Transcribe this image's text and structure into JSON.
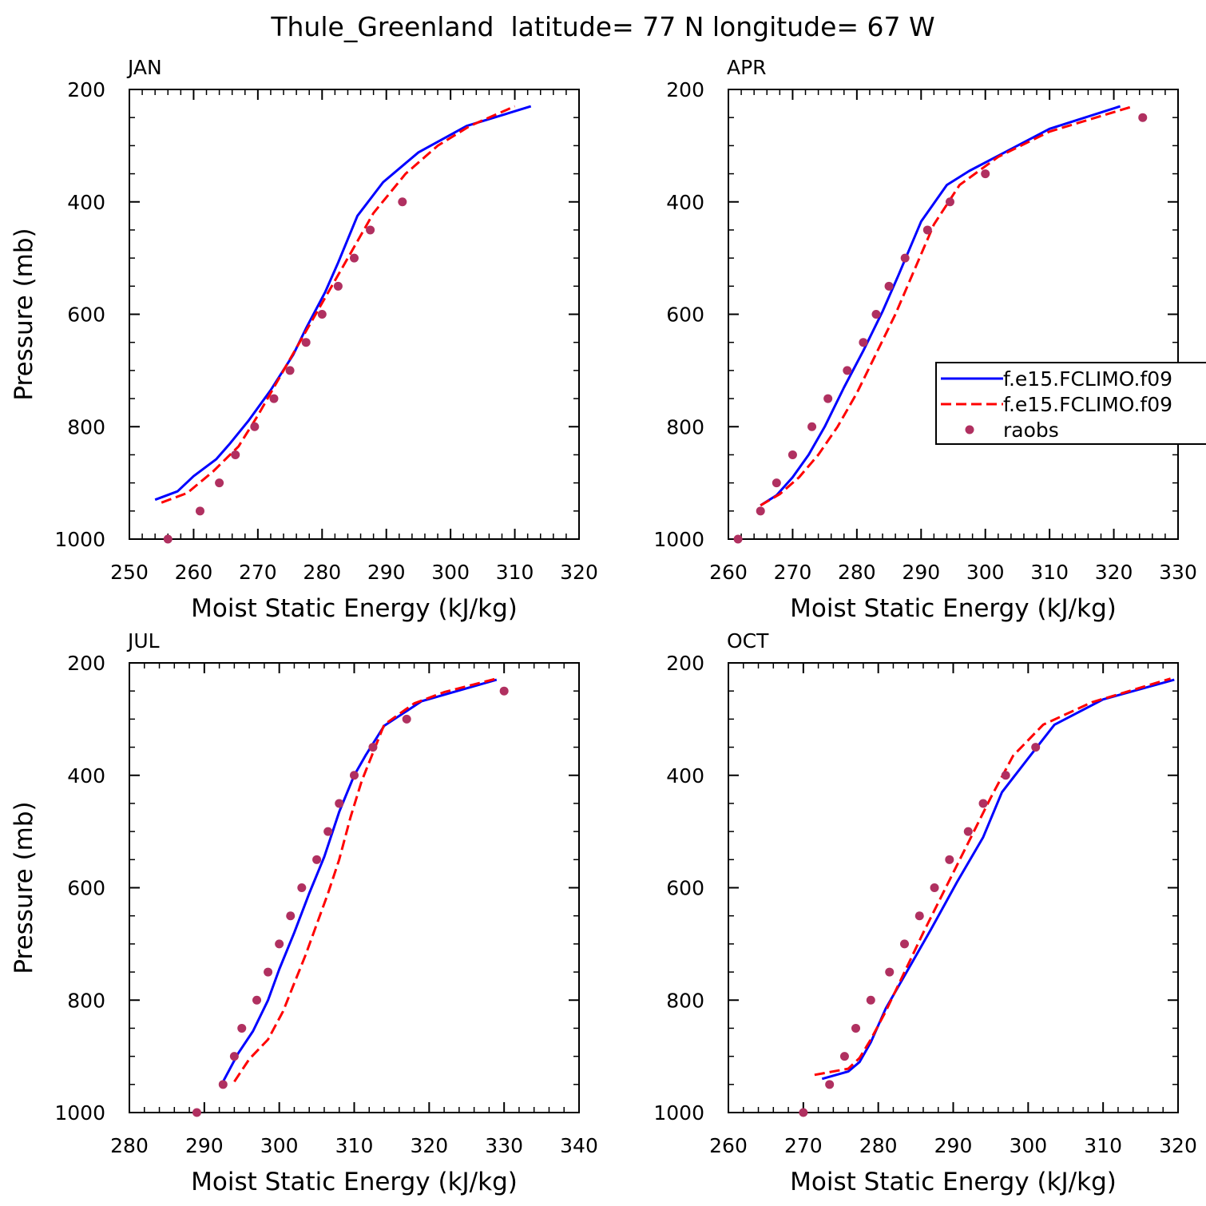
{
  "figure": {
    "title": "Thule_Greenland  latitude= 77 N longitude= 67 W"
  },
  "legend": {
    "entries": [
      {
        "label": "f.e15.FCLIMO.f09",
        "color": "#0000ff",
        "style": "solid"
      },
      {
        "label": "f.e15.FCLIMO.f09",
        "color": "#ff0000",
        "style": "dashed"
      },
      {
        "label": "raobs",
        "color": "#b03060",
        "style": "marker"
      }
    ]
  },
  "chart_data": [
    {
      "type": "line",
      "panel": "JAN",
      "xlabel": "Moist Static Energy (kJ/kg)",
      "ylabel": "Pressure (mb)",
      "xlim": [
        250,
        320
      ],
      "ylim": [
        200,
        1000
      ],
      "y_inverted": true,
      "xticks": [
        250,
        260,
        270,
        280,
        290,
        300,
        310,
        320
      ],
      "yticks": [
        200,
        400,
        600,
        800,
        1000
      ],
      "series": [
        {
          "name": "f.e15.FCLIMO.f09",
          "color": "#0000ff",
          "style": "solid",
          "x": [
            254,
            257.5,
            260,
            263.5,
            265.5,
            268.5,
            272,
            275.5,
            277.5,
            280.5,
            282.5,
            285.5,
            289.5,
            295,
            302.5,
            312.5
          ],
          "y": [
            930,
            915,
            888,
            858,
            832,
            790,
            735,
            672,
            625,
            560,
            508,
            425,
            365,
            312,
            265,
            230
          ]
        },
        {
          "name": "f.e15.FCLIMO.f09",
          "color": "#ff0000",
          "style": "dashed",
          "x": [
            255,
            259,
            263,
            267,
            270,
            273,
            276,
            279,
            282,
            284.5,
            288,
            293,
            298,
            303,
            310
          ],
          "y": [
            935,
            918,
            880,
            835,
            780,
            720,
            660,
            600,
            540,
            490,
            420,
            350,
            300,
            265,
            230
          ]
        }
      ],
      "points": {
        "name": "raobs",
        "color": "#b03060",
        "x": [
          256,
          261,
          264,
          266.5,
          269.5,
          272.5,
          275,
          277.5,
          280,
          282.5,
          285,
          287.5,
          292.5
        ],
        "y": [
          1000,
          950,
          900,
          850,
          800,
          750,
          700,
          650,
          600,
          550,
          500,
          450,
          400
        ]
      }
    },
    {
      "type": "line",
      "panel": "APR",
      "xlabel": "Moist Static Energy (kJ/kg)",
      "ylabel": "",
      "xlim": [
        260,
        330
      ],
      "ylim": [
        200,
        1000
      ],
      "y_inverted": true,
      "xticks": [
        260,
        270,
        280,
        290,
        300,
        310,
        320,
        330
      ],
      "yticks": [
        200,
        400,
        600,
        800,
        1000
      ],
      "series": [
        {
          "name": "f.e15.FCLIMO.f09",
          "color": "#0000ff",
          "style": "solid",
          "x": [
            265,
            267.5,
            270,
            272.5,
            275,
            278,
            281,
            284,
            286.5,
            290,
            294,
            297.5,
            302.5,
            310,
            321
          ],
          "y": [
            940,
            922,
            890,
            850,
            800,
            730,
            665,
            595,
            530,
            435,
            370,
            345,
            315,
            270,
            230
          ]
        },
        {
          "name": "f.e15.FCLIMO.f09",
          "color": "#ff0000",
          "style": "dashed",
          "x": [
            265,
            268,
            271,
            274,
            277,
            280,
            283,
            286,
            289,
            292,
            296,
            302,
            310,
            323
          ],
          "y": [
            940,
            920,
            890,
            850,
            800,
            740,
            670,
            600,
            520,
            440,
            370,
            320,
            275,
            230
          ]
        }
      ],
      "points": {
        "name": "raobs",
        "color": "#b03060",
        "x": [
          261.5,
          265,
          267.5,
          270,
          273,
          275.5,
          278.5,
          281,
          283,
          285,
          287.5,
          291,
          294.5,
          300,
          324.5
        ],
        "y": [
          1000,
          950,
          900,
          850,
          800,
          750,
          700,
          650,
          600,
          550,
          500,
          450,
          400,
          350,
          250
        ]
      }
    },
    {
      "type": "line",
      "panel": "JUL",
      "xlabel": "Moist Static Energy (kJ/kg)",
      "ylabel": "Pressure (mb)",
      "xlim": [
        280,
        340
      ],
      "ylim": [
        200,
        1000
      ],
      "y_inverted": true,
      "xticks": [
        280,
        290,
        300,
        310,
        320,
        330,
        340
      ],
      "yticks": [
        200,
        400,
        600,
        800,
        1000
      ],
      "series": [
        {
          "name": "f.e15.FCLIMO.f09",
          "color": "#0000ff",
          "style": "solid",
          "x": [
            292.5,
            294.5,
            296.5,
            298.5,
            300,
            302,
            304,
            306,
            308,
            310,
            311.5,
            314,
            319,
            329
          ],
          "y": [
            945,
            895,
            855,
            800,
            745,
            680,
            610,
            545,
            465,
            400,
            365,
            312,
            268,
            230
          ]
        },
        {
          "name": "f.e15.FCLIMO.f09",
          "color": "#ff0000",
          "style": "dashed",
          "x": [
            294,
            296,
            298.5,
            300.5,
            302,
            303.5,
            305,
            306.5,
            308,
            309.5,
            311,
            314,
            318,
            322,
            329
          ],
          "y": [
            945,
            905,
            870,
            820,
            770,
            720,
            665,
            610,
            550,
            475,
            410,
            310,
            272,
            252,
            228
          ]
        }
      ],
      "points": {
        "name": "raobs",
        "color": "#b03060",
        "x": [
          289,
          292.5,
          294,
          295,
          297,
          298.5,
          300,
          301.5,
          303,
          305,
          306.5,
          308,
          310,
          312.5,
          317,
          330
        ],
        "y": [
          1000,
          950,
          900,
          850,
          800,
          750,
          700,
          650,
          600,
          550,
          500,
          450,
          400,
          350,
          300,
          250
        ]
      }
    },
    {
      "type": "line",
      "panel": "OCT",
      "xlabel": "Moist Static Energy (kJ/kg)",
      "ylabel": "",
      "xlim": [
        260,
        320
      ],
      "ylim": [
        200,
        1000
      ],
      "y_inverted": true,
      "xticks": [
        260,
        270,
        280,
        290,
        300,
        310,
        320
      ],
      "yticks": [
        200,
        400,
        600,
        800,
        1000
      ],
      "series": [
        {
          "name": "f.e15.FCLIMO.f09",
          "color": "#0000ff",
          "style": "solid",
          "x": [
            272.5,
            276,
            277.5,
            279,
            281,
            284,
            287,
            290.5,
            294,
            296.5,
            300,
            303.5,
            310,
            319.5
          ],
          "y": [
            940,
            927,
            910,
            875,
            815,
            745,
            675,
            590,
            510,
            430,
            370,
            310,
            265,
            230
          ]
        },
        {
          "name": "f.e15.FCLIMO.f09",
          "color": "#ff0000",
          "style": "dashed",
          "x": [
            271.5,
            276,
            277.5,
            279,
            281,
            283.5,
            286,
            289,
            292,
            295,
            298,
            302,
            308.5,
            319
          ],
          "y": [
            933,
            922,
            903,
            870,
            820,
            750,
            680,
            600,
            520,
            440,
            365,
            310,
            270,
            228
          ]
        }
      ],
      "points": {
        "name": "raobs",
        "color": "#b03060",
        "x": [
          270,
          273.5,
          275.5,
          277,
          279,
          281.5,
          283.5,
          285.5,
          287.5,
          289.5,
          292,
          294,
          297,
          301
        ],
        "y": [
          1000,
          950,
          900,
          850,
          800,
          750,
          700,
          650,
          600,
          550,
          500,
          450,
          400,
          350
        ]
      }
    }
  ]
}
